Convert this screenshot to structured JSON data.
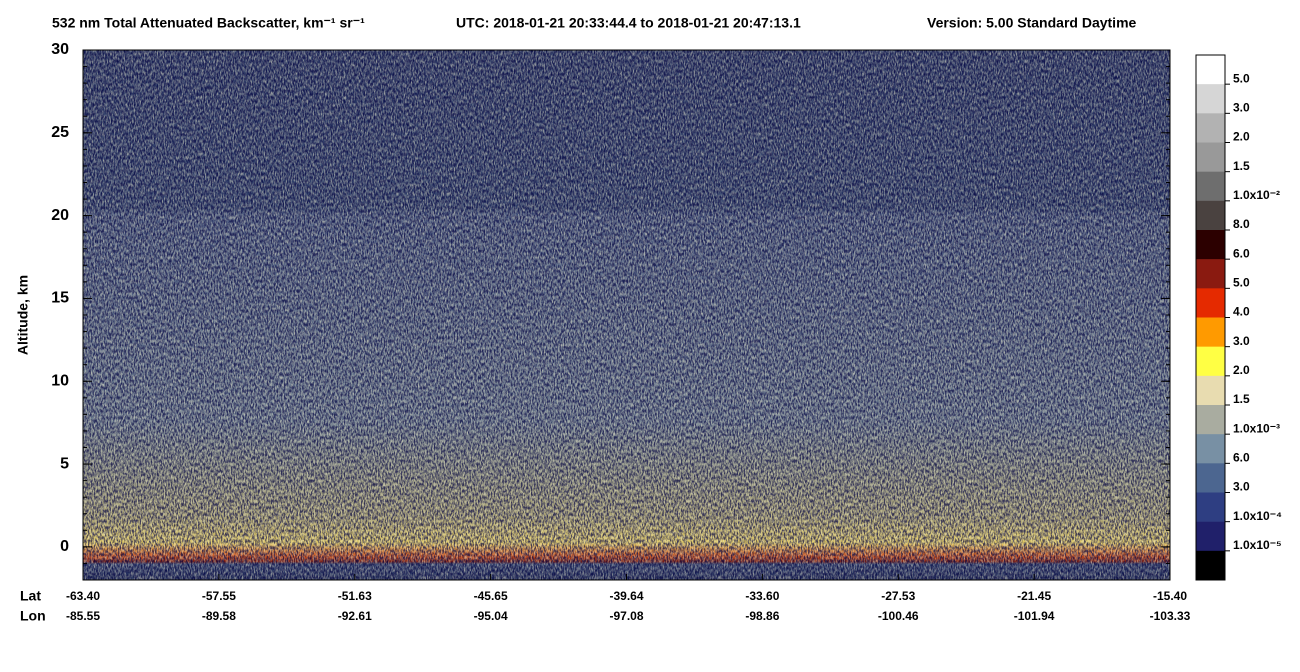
{
  "chart_data": {
    "type": "profile-image",
    "title": "532 nm Total Attenuated Backscatter, km⁻¹ sr⁻¹",
    "time_range": "UTC:  2018-01-21 20:33:44.4  to  2018-01-21 20:47:13.1",
    "version": "Version: 5.00  Standard  Daytime",
    "y_label": "Altitude, km",
    "ylim": [
      -2,
      30
    ],
    "yticks": [
      0,
      5,
      10,
      15,
      20,
      25,
      30
    ],
    "x_row_labels": [
      "Lat",
      "Lon"
    ],
    "xticks": [
      {
        "lat": "-63.40",
        "lon": "-85.55"
      },
      {
        "lat": "-57.55",
        "lon": "-89.58"
      },
      {
        "lat": "-51.63",
        "lon": "-92.61"
      },
      {
        "lat": "-45.65",
        "lon": "-95.04"
      },
      {
        "lat": "-39.64",
        "lon": "-97.08"
      },
      {
        "lat": "-33.60",
        "lon": "-98.86"
      },
      {
        "lat": "-27.53",
        "lon": "-100.46"
      },
      {
        "lat": "-21.45",
        "lon": "-101.94"
      },
      {
        "lat": "-15.40",
        "lon": "-103.33"
      }
    ],
    "colorbar": {
      "colors": [
        "#ffffff",
        "#d6d6d6",
        "#b2b2b2",
        "#999999",
        "#6e6e6e",
        "#4a4240",
        "#2c0000",
        "#8a1a10",
        "#e52a00",
        "#ff9a00",
        "#ffff44",
        "#e8dcb0",
        "#a9aca0",
        "#7890a4",
        "#4c6690",
        "#2e3e82",
        "#20206a",
        "#000000"
      ],
      "labels": [
        "5.0",
        "3.0",
        "2.0",
        "1.5",
        "1.0x10⁻²",
        "8.0",
        "6.0",
        "5.0",
        "4.0",
        "3.0",
        "2.0",
        "1.5",
        "1.0x10⁻³",
        "6.0",
        "3.0",
        "1.0x10⁻⁴",
        "1.0x10⁻⁵"
      ]
    }
  }
}
